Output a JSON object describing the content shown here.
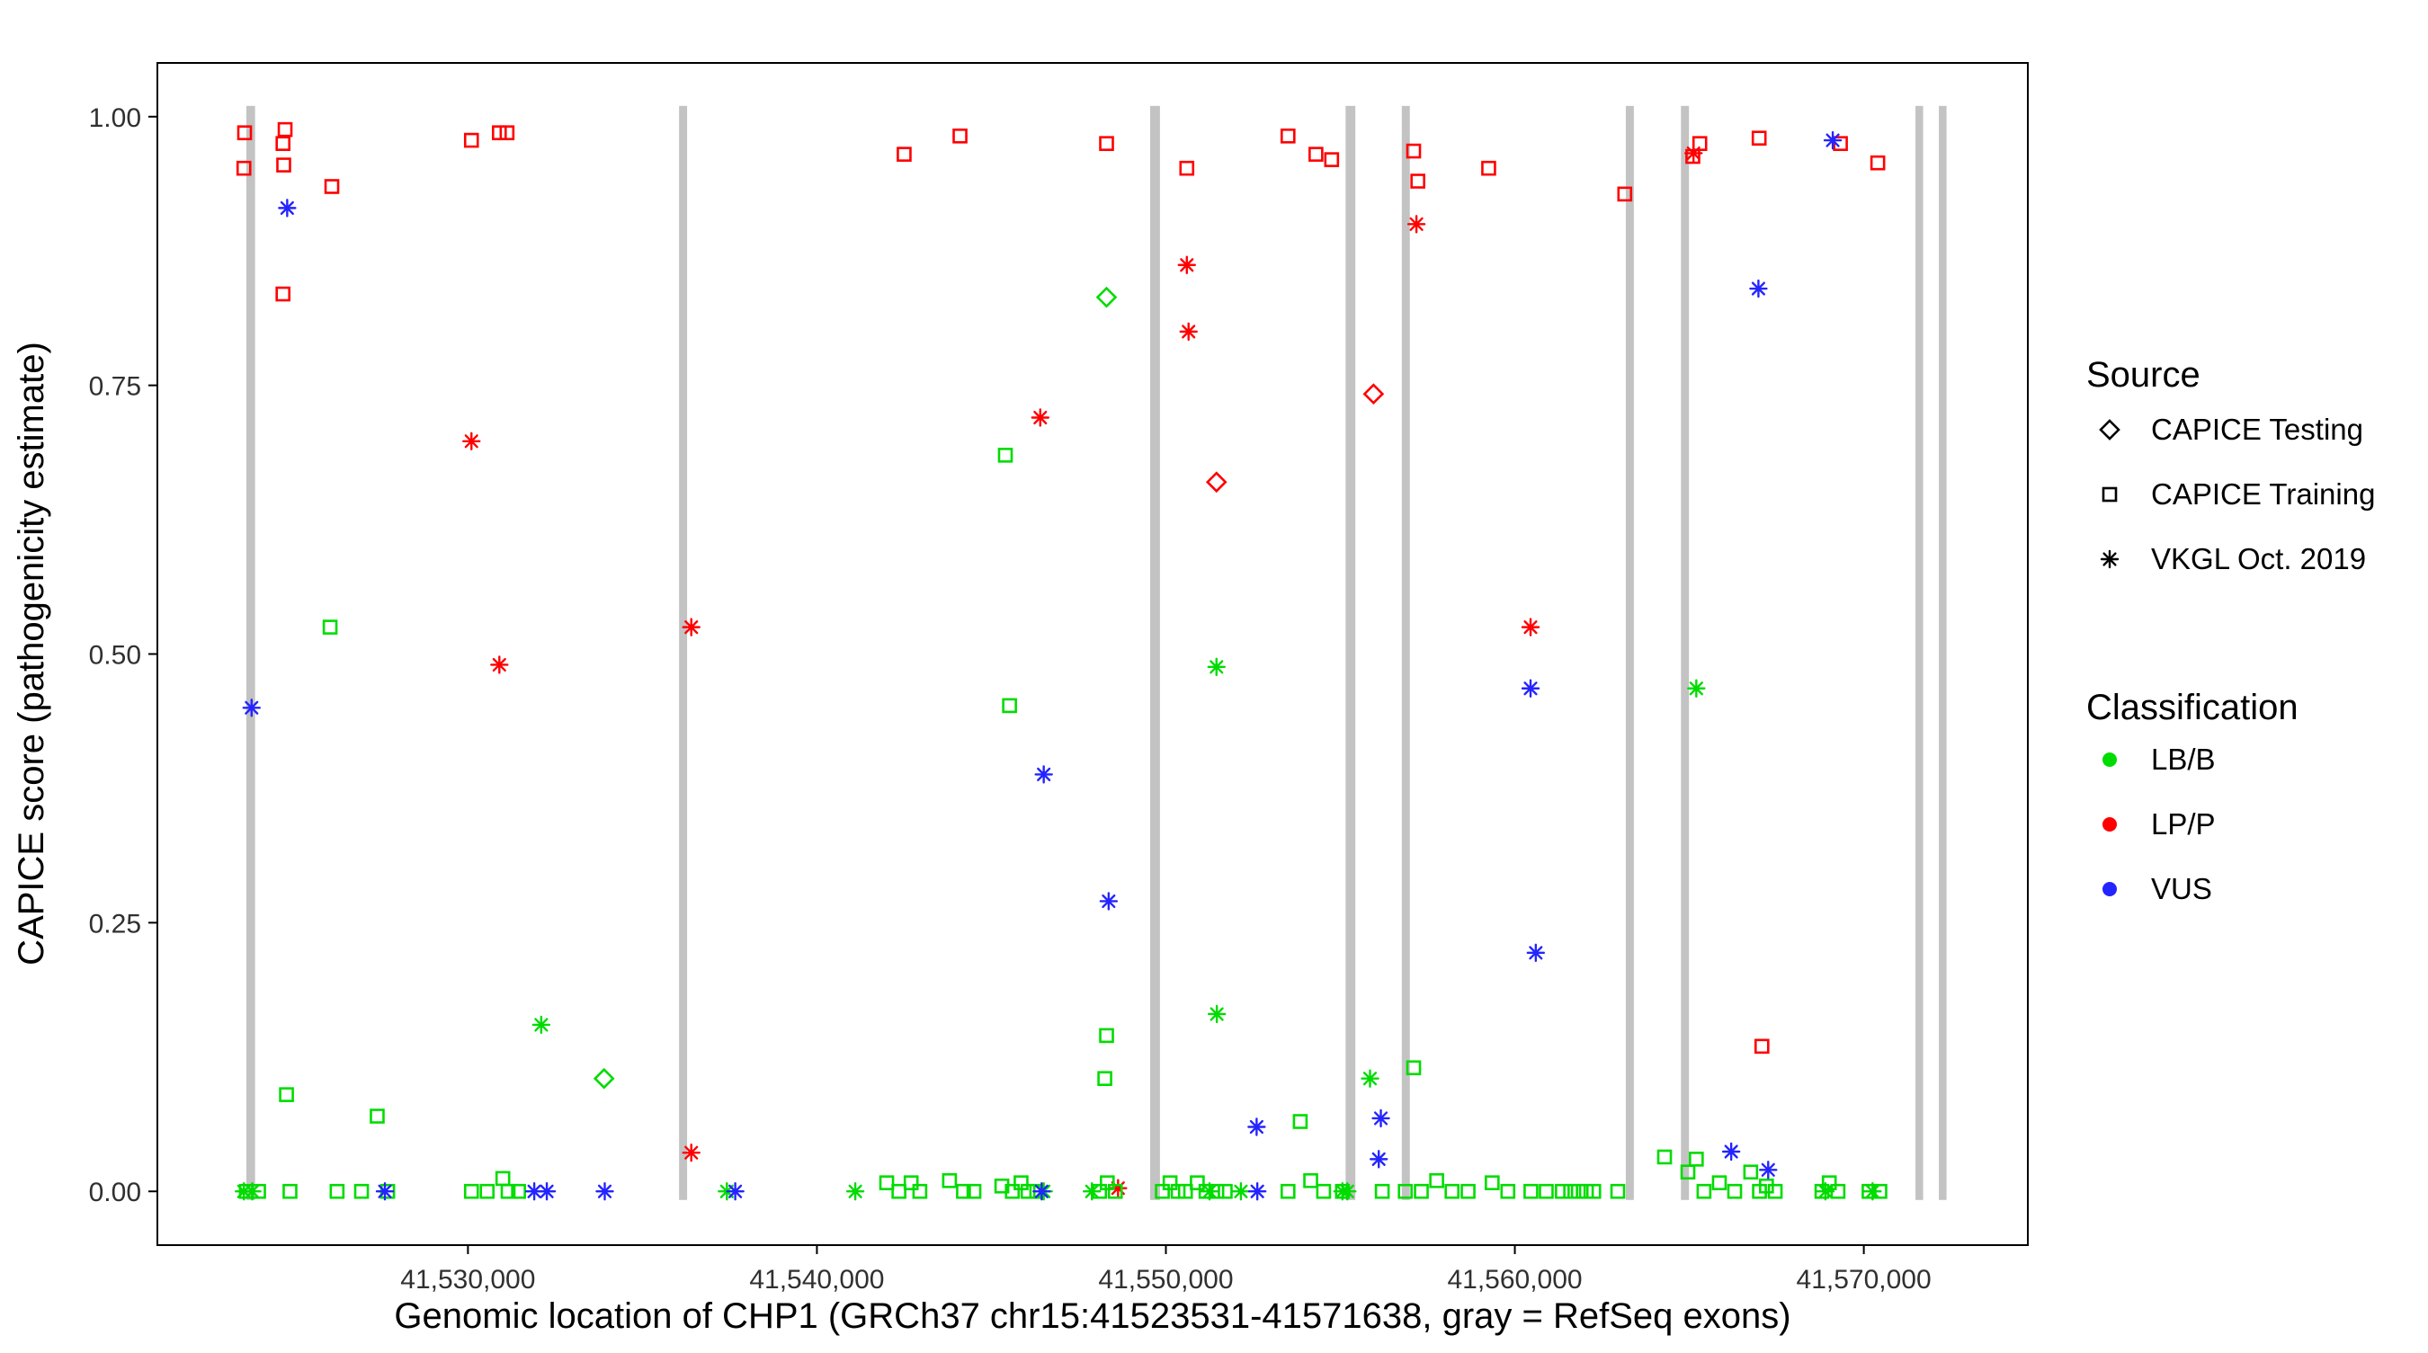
{
  "figure": {
    "background": "#FFFFFF"
  },
  "chart_data": {
    "type": "scatter",
    "title": "",
    "xlabel": "Genomic location of CHP1 (GRCh37 chr15:41523531-41571638, gray = RefSeq exons)",
    "ylabel": "CAPICE score (pathogenicity estimate)",
    "x_domain": [
      41521100,
      41574700
    ],
    "y_domain": [
      -0.05,
      1.05
    ],
    "x_ticks": [
      {
        "value": 41530000,
        "label": "41,530,000"
      },
      {
        "value": 41540000,
        "label": "41,540,000"
      },
      {
        "value": 41550000,
        "label": "41,550,000"
      },
      {
        "value": 41560000,
        "label": "41,560,000"
      },
      {
        "value": 41570000,
        "label": "41,570,000"
      }
    ],
    "y_ticks": [
      {
        "value": 0.0,
        "label": "0.00"
      },
      {
        "value": 0.25,
        "label": "0.25"
      },
      {
        "value": 0.5,
        "label": "0.50"
      },
      {
        "value": 0.75,
        "label": "0.75"
      },
      {
        "value": 1.0,
        "label": "1.00"
      }
    ],
    "grid": false,
    "exon_color": "#C3C3C3",
    "legend_icon_color": "#000000",
    "classification_colors": {
      "LB/B": "#00DC00",
      "LP/P": "#FF0000",
      "VUS": "#2424FF"
    },
    "exons": [
      [
        41523650,
        41523900
      ],
      [
        41536050,
        41536280
      ],
      [
        41549550,
        41549830
      ],
      [
        41555150,
        41555430
      ],
      [
        41556760,
        41556990
      ],
      [
        41563180,
        41563410
      ],
      [
        41564760,
        41564990
      ],
      [
        41571480,
        41571700
      ],
      [
        41572150,
        41572370
      ]
    ],
    "legend": {
      "source_title": "Source",
      "source_items": [
        {
          "label": "CAPICE Testing",
          "shape": "diamond"
        },
        {
          "label": "CAPICE Training",
          "shape": "square"
        },
        {
          "label": "VKGL Oct. 2019",
          "shape": "asterisk"
        }
      ],
      "classification_title": "Classification",
      "classification_items": [
        {
          "label": "LB/B",
          "color": "#00DC00"
        },
        {
          "label": "LP/P",
          "color": "#FF0000"
        },
        {
          "label": "VUS",
          "color": "#2424FF"
        }
      ]
    },
    "points": [
      [
        41523600,
        0.985,
        "training",
        "LP/P"
      ],
      [
        41523580,
        0.952,
        "training",
        "LP/P"
      ],
      [
        41524700,
        0.975,
        "training",
        "LP/P"
      ],
      [
        41524720,
        0.955,
        "training",
        "LP/P"
      ],
      [
        41524760,
        0.988,
        "training",
        "LP/P"
      ],
      [
        41526100,
        0.935,
        "training",
        "LP/P"
      ],
      [
        41524700,
        0.835,
        "training",
        "LP/P"
      ],
      [
        41530100,
        0.978,
        "training",
        "LP/P"
      ],
      [
        41530900,
        0.985,
        "training",
        "LP/P"
      ],
      [
        41531120,
        0.985,
        "training",
        "LP/P"
      ],
      [
        41542500,
        0.965,
        "training",
        "LP/P"
      ],
      [
        41544100,
        0.982,
        "training",
        "LP/P"
      ],
      [
        41548300,
        0.975,
        "training",
        "LP/P"
      ],
      [
        41550600,
        0.952,
        "training",
        "LP/P"
      ],
      [
        41553500,
        0.982,
        "training",
        "LP/P"
      ],
      [
        41554300,
        0.965,
        "training",
        "LP/P"
      ],
      [
        41554750,
        0.96,
        "training",
        "LP/P"
      ],
      [
        41557100,
        0.968,
        "training",
        "LP/P"
      ],
      [
        41557220,
        0.94,
        "training",
        "LP/P"
      ],
      [
        41559250,
        0.952,
        "training",
        "LP/P"
      ],
      [
        41563150,
        0.928,
        "training",
        "LP/P"
      ],
      [
        41565100,
        0.963,
        "training",
        "LP/P"
      ],
      [
        41565300,
        0.975,
        "training",
        "LP/P"
      ],
      [
        41567000,
        0.98,
        "training",
        "LP/P"
      ],
      [
        41567080,
        0.135,
        "training",
        "LP/P"
      ],
      [
        41569330,
        0.975,
        "training",
        "LP/P"
      ],
      [
        41570400,
        0.957,
        "training",
        "LP/P"
      ],
      [
        41530100,
        0.698,
        "vkgl",
        "LP/P"
      ],
      [
        41530900,
        0.49,
        "vkgl",
        "LP/P"
      ],
      [
        41536400,
        0.525,
        "vkgl",
        "LP/P"
      ],
      [
        41536400,
        0.036,
        "vkgl",
        "LP/P"
      ],
      [
        41546400,
        0.72,
        "vkgl",
        "LP/P"
      ],
      [
        41550600,
        0.862,
        "vkgl",
        "LP/P"
      ],
      [
        41550650,
        0.8,
        "vkgl",
        "LP/P"
      ],
      [
        41548630,
        0.003,
        "vkgl",
        "LP/P"
      ],
      [
        41557180,
        0.9,
        "vkgl",
        "LP/P"
      ],
      [
        41560450,
        0.525,
        "vkgl",
        "LP/P"
      ],
      [
        41565120,
        0.966,
        "vkgl",
        "LP/P"
      ],
      [
        41551450,
        0.66,
        "testing",
        "LP/P"
      ],
      [
        41555950,
        0.742,
        "testing",
        "LP/P"
      ],
      [
        41533900,
        0.105,
        "testing",
        "LB/B"
      ],
      [
        41548300,
        0.832,
        "testing",
        "LB/B"
      ],
      [
        41526050,
        0.525,
        "training",
        "LB/B"
      ],
      [
        41524800,
        0.09,
        "training",
        "LB/B"
      ],
      [
        41527400,
        0.07,
        "training",
        "LB/B"
      ],
      [
        41545400,
        0.685,
        "training",
        "LB/B"
      ],
      [
        41545520,
        0.452,
        "training",
        "LB/B"
      ],
      [
        41548300,
        0.145,
        "training",
        "LB/B"
      ],
      [
        41548250,
        0.105,
        "training",
        "LB/B"
      ],
      [
        41553850,
        0.065,
        "training",
        "LB/B"
      ],
      [
        41557100,
        0.115,
        "training",
        "LB/B"
      ],
      [
        41564290,
        0.032,
        "training",
        "LB/B"
      ],
      [
        41523650,
        0,
        "training",
        "LB/B"
      ],
      [
        41524000,
        0,
        "training",
        "LB/B"
      ],
      [
        41524900,
        0,
        "training",
        "LB/B"
      ],
      [
        41526250,
        0,
        "training",
        "LB/B"
      ],
      [
        41526950,
        0,
        "training",
        "LB/B"
      ],
      [
        41527700,
        0,
        "training",
        "LB/B"
      ],
      [
        41530100,
        0,
        "training",
        "LB/B"
      ],
      [
        41530550,
        0,
        "training",
        "LB/B"
      ],
      [
        41531000,
        0.012,
        "training",
        "LB/B"
      ],
      [
        41531150,
        0,
        "training",
        "LB/B"
      ],
      [
        41531450,
        0,
        "training",
        "LB/B"
      ],
      [
        41542000,
        0.008,
        "training",
        "LB/B"
      ],
      [
        41542350,
        0,
        "training",
        "LB/B"
      ],
      [
        41542700,
        0.008,
        "training",
        "LB/B"
      ],
      [
        41542950,
        0,
        "training",
        "LB/B"
      ],
      [
        41543800,
        0.01,
        "training",
        "LB/B"
      ],
      [
        41544200,
        0,
        "training",
        "LB/B"
      ],
      [
        41544500,
        0,
        "training",
        "LB/B"
      ],
      [
        41545300,
        0.005,
        "training",
        "LB/B"
      ],
      [
        41545600,
        0,
        "training",
        "LB/B"
      ],
      [
        41545850,
        0.008,
        "training",
        "LB/B"
      ],
      [
        41546050,
        0,
        "training",
        "LB/B"
      ],
      [
        41546300,
        0,
        "training",
        "LB/B"
      ],
      [
        41548100,
        0,
        "training",
        "LB/B"
      ],
      [
        41548320,
        0.008,
        "training",
        "LB/B"
      ],
      [
        41548550,
        0,
        "training",
        "LB/B"
      ],
      [
        41549900,
        0,
        "training",
        "LB/B"
      ],
      [
        41550120,
        0.008,
        "training",
        "LB/B"
      ],
      [
        41550350,
        0,
        "training",
        "LB/B"
      ],
      [
        41550560,
        0,
        "training",
        "LB/B"
      ],
      [
        41550900,
        0.008,
        "training",
        "LB/B"
      ],
      [
        41551150,
        0,
        "training",
        "LB/B"
      ],
      [
        41551460,
        0,
        "training",
        "LB/B"
      ],
      [
        41551700,
        0,
        "training",
        "LB/B"
      ],
      [
        41553500,
        0,
        "training",
        "LB/B"
      ],
      [
        41554150,
        0.01,
        "training",
        "LB/B"
      ],
      [
        41554520,
        0,
        "training",
        "LB/B"
      ],
      [
        41555060,
        0,
        "training",
        "LB/B"
      ],
      [
        41556200,
        0,
        "training",
        "LB/B"
      ],
      [
        41556860,
        0,
        "training",
        "LB/B"
      ],
      [
        41557320,
        0,
        "training",
        "LB/B"
      ],
      [
        41557760,
        0.01,
        "training",
        "LB/B"
      ],
      [
        41558200,
        0,
        "training",
        "LB/B"
      ],
      [
        41558660,
        0,
        "training",
        "LB/B"
      ],
      [
        41559350,
        0.008,
        "training",
        "LB/B"
      ],
      [
        41559800,
        0,
        "training",
        "LB/B"
      ],
      [
        41560460,
        0,
        "training",
        "LB/B"
      ],
      [
        41560900,
        0,
        "training",
        "LB/B"
      ],
      [
        41561360,
        0,
        "training",
        "LB/B"
      ],
      [
        41561600,
        0,
        "training",
        "LB/B"
      ],
      [
        41561820,
        0,
        "training",
        "LB/B"
      ],
      [
        41562050,
        0,
        "training",
        "LB/B"
      ],
      [
        41562260,
        0,
        "training",
        "LB/B"
      ],
      [
        41562950,
        0,
        "training",
        "LB/B"
      ],
      [
        41564960,
        0.018,
        "training",
        "LB/B"
      ],
      [
        41565200,
        0.03,
        "training",
        "LB/B"
      ],
      [
        41565420,
        0,
        "training",
        "LB/B"
      ],
      [
        41565860,
        0.008,
        "training",
        "LB/B"
      ],
      [
        41566300,
        0,
        "training",
        "LB/B"
      ],
      [
        41566760,
        0.018,
        "training",
        "LB/B"
      ],
      [
        41567010,
        0,
        "training",
        "LB/B"
      ],
      [
        41567210,
        0.005,
        "training",
        "LB/B"
      ],
      [
        41567460,
        0,
        "training",
        "LB/B"
      ],
      [
        41568800,
        0,
        "training",
        "LB/B"
      ],
      [
        41569010,
        0.008,
        "training",
        "LB/B"
      ],
      [
        41569260,
        0,
        "training",
        "LB/B"
      ],
      [
        41570150,
        0,
        "training",
        "LB/B"
      ],
      [
        41570460,
        0,
        "training",
        "LB/B"
      ],
      [
        41523580,
        0,
        "vkgl",
        "LB/B"
      ],
      [
        41523820,
        0,
        "vkgl",
        "LB/B"
      ],
      [
        41532100,
        0.155,
        "vkgl",
        "LB/B"
      ],
      [
        41537420,
        0,
        "vkgl",
        "LB/B"
      ],
      [
        41541100,
        0,
        "vkgl",
        "LB/B"
      ],
      [
        41546500,
        0,
        "vkgl",
        "LB/B"
      ],
      [
        41547880,
        0,
        "vkgl",
        "LB/B"
      ],
      [
        41551250,
        0,
        "vkgl",
        "LB/B"
      ],
      [
        41552150,
        0,
        "vkgl",
        "LB/B"
      ],
      [
        41551450,
        0.488,
        "vkgl",
        "LB/B"
      ],
      [
        41551460,
        0.165,
        "vkgl",
        "LB/B"
      ],
      [
        41555200,
        0,
        "vkgl",
        "LB/B"
      ],
      [
        41555850,
        0.105,
        "vkgl",
        "LB/B"
      ],
      [
        41555060,
        0,
        "vkgl",
        "LB/B"
      ],
      [
        41565200,
        0.468,
        "vkgl",
        "LB/B"
      ],
      [
        41568900,
        0,
        "vkgl",
        "LB/B"
      ],
      [
        41570250,
        0,
        "vkgl",
        "LB/B"
      ],
      [
        41524820,
        0.915,
        "vkgl",
        "VUS"
      ],
      [
        41523800,
        0.45,
        "vkgl",
        "VUS"
      ],
      [
        41527620,
        0,
        "vkgl",
        "VUS"
      ],
      [
        41531900,
        0,
        "vkgl",
        "VUS"
      ],
      [
        41532260,
        0,
        "vkgl",
        "VUS"
      ],
      [
        41533920,
        0,
        "vkgl",
        "VUS"
      ],
      [
        41537660,
        0,
        "vkgl",
        "VUS"
      ],
      [
        41546500,
        0.388,
        "vkgl",
        "VUS"
      ],
      [
        41546440,
        0,
        "vkgl",
        "VUS"
      ],
      [
        41548360,
        0.27,
        "vkgl",
        "VUS"
      ],
      [
        41552600,
        0.06,
        "vkgl",
        "VUS"
      ],
      [
        41552620,
        0,
        "vkgl",
        "VUS"
      ],
      [
        41556160,
        0.068,
        "vkgl",
        "VUS"
      ],
      [
        41556100,
        0.03,
        "vkgl",
        "VUS"
      ],
      [
        41560450,
        0.468,
        "vkgl",
        "VUS"
      ],
      [
        41560600,
        0.222,
        "vkgl",
        "VUS"
      ],
      [
        41566200,
        0.037,
        "vkgl",
        "VUS"
      ],
      [
        41566980,
        0.84,
        "vkgl",
        "VUS"
      ],
      [
        41569110,
        0.978,
        "vkgl",
        "VUS"
      ],
      [
        41567260,
        0.02,
        "vkgl",
        "VUS"
      ]
    ]
  }
}
